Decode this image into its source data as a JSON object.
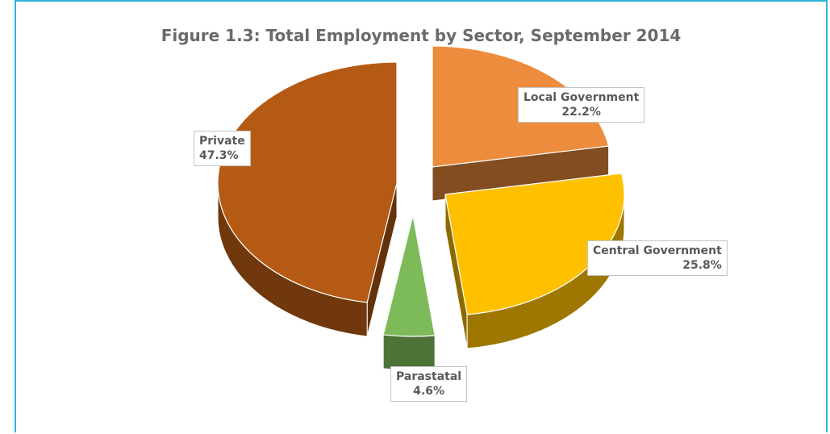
{
  "chart_data": {
    "type": "pie",
    "title": "Figure 1.3: Total Employment by Sector, September 2014",
    "slices": [
      {
        "label": "Local Government",
        "value": 22.2,
        "value_label": "22.2%",
        "color": "#ec8c3c"
      },
      {
        "label": "Central Government",
        "value": 25.8,
        "value_label": "25.8%",
        "color": "#ffc000"
      },
      {
        "label": "Parastatal",
        "value": 4.6,
        "value_label": "4.6%",
        "color": "#7cba5a"
      },
      {
        "label": "Private",
        "value": 47.3,
        "value_label": "47.3%",
        "color": "#b45a14"
      }
    ],
    "style": "3D exploded pie",
    "legend": "none (data labels on slices)"
  }
}
